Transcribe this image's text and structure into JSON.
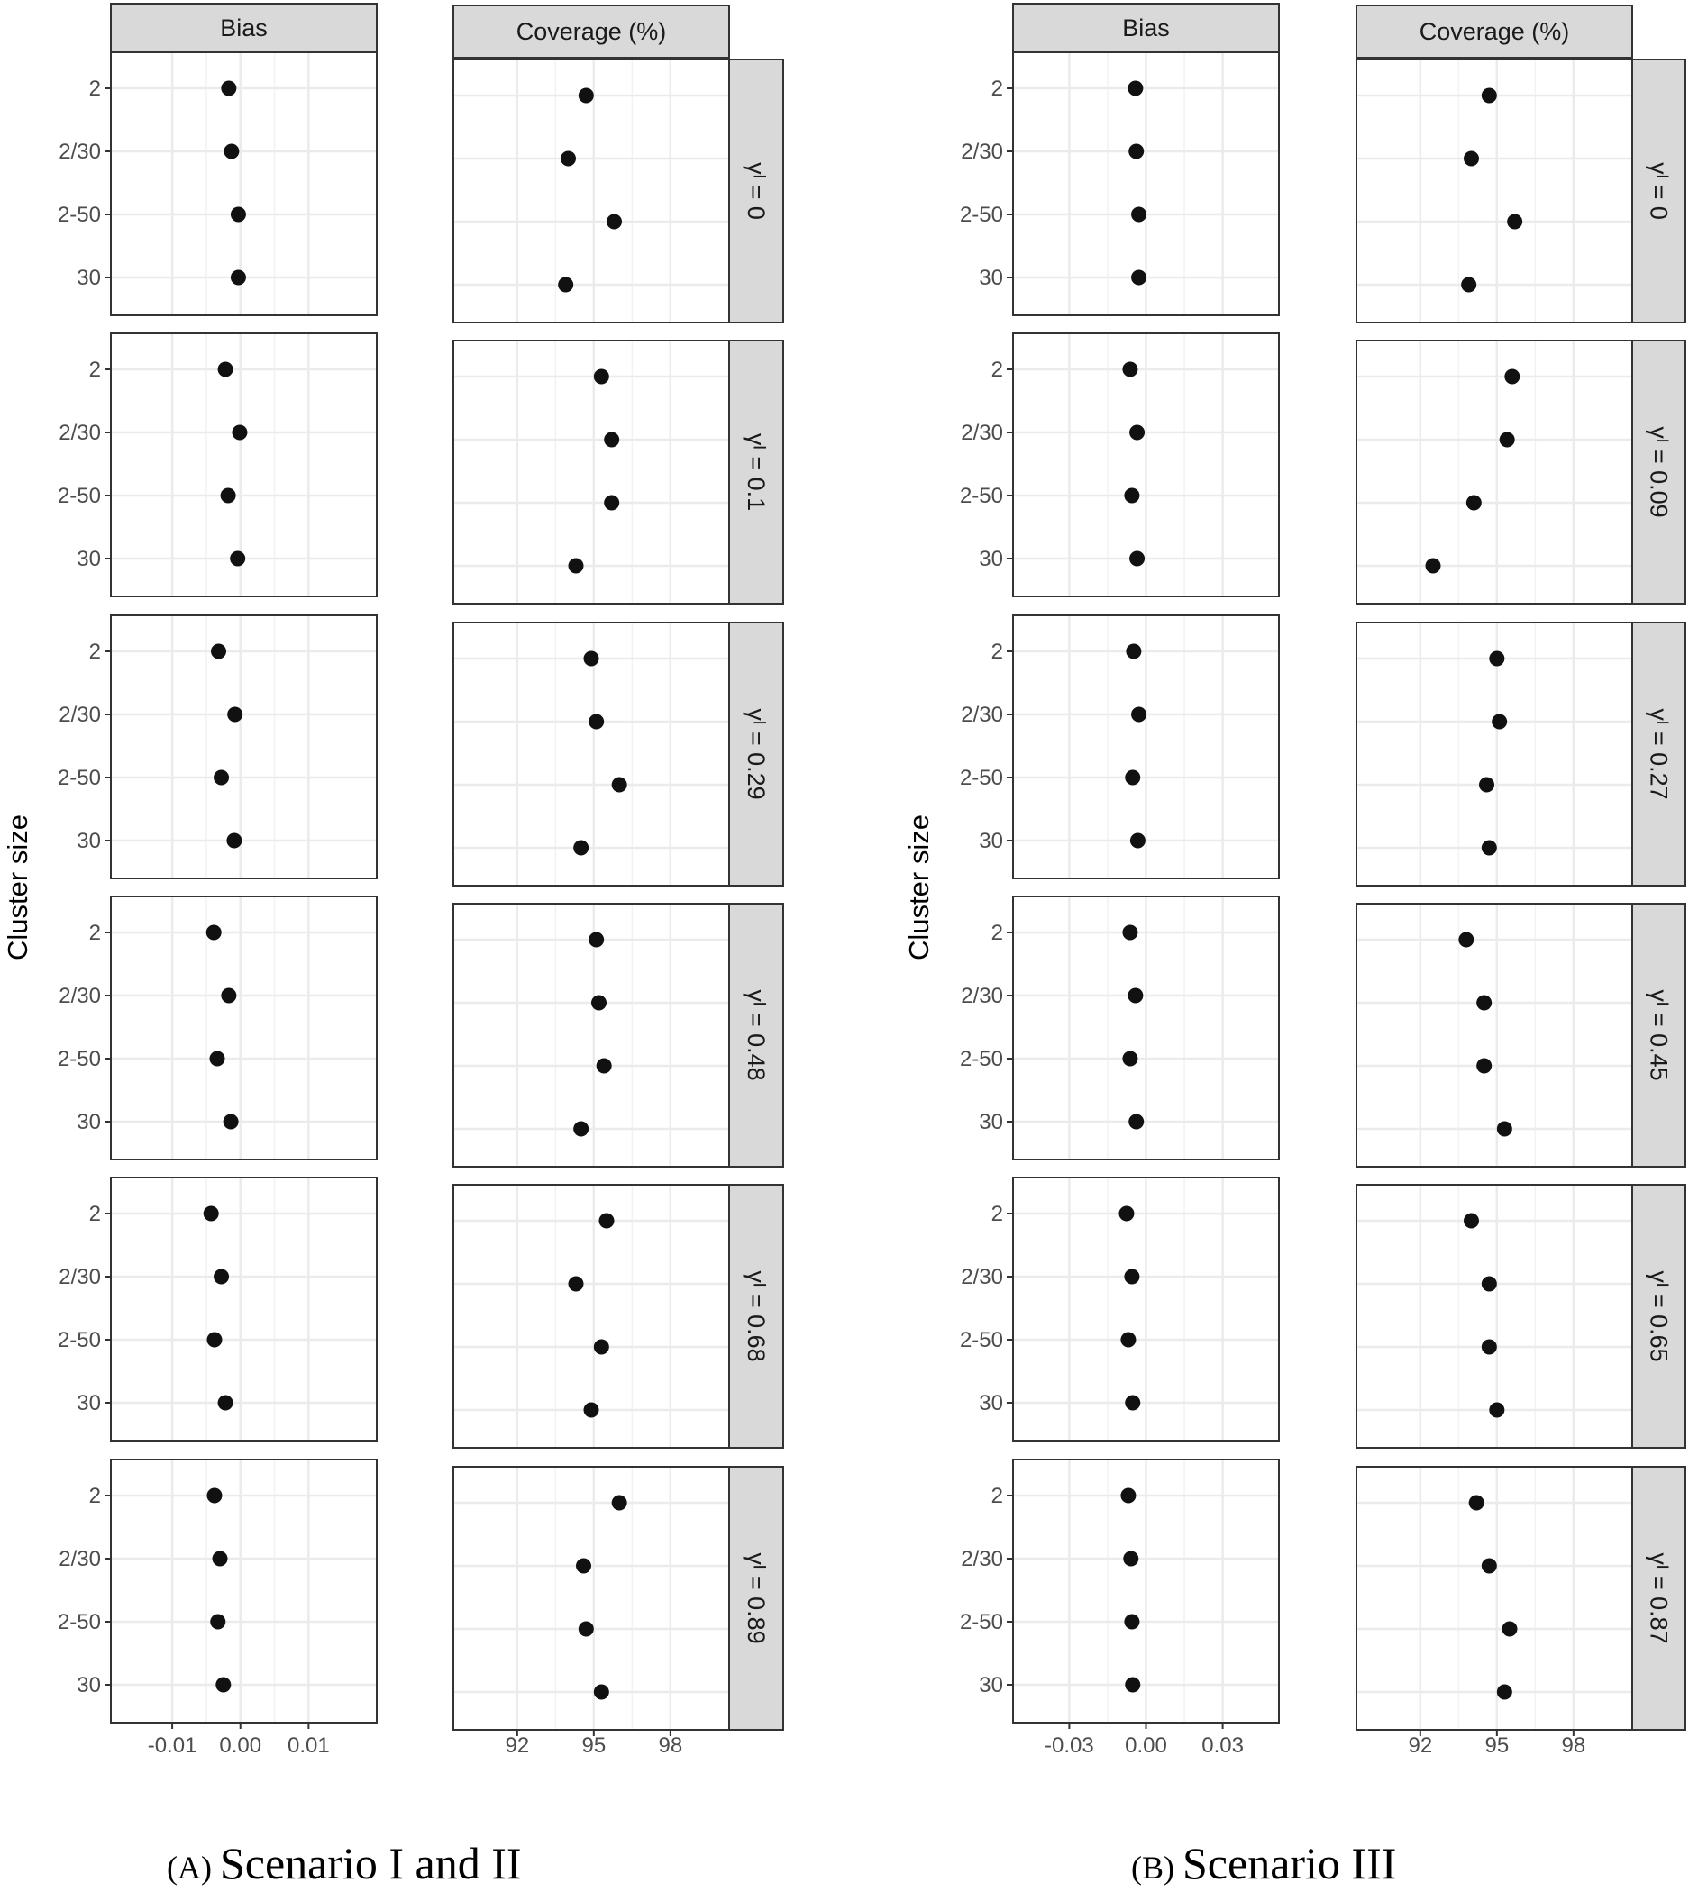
{
  "chart_data": [
    {
      "type": "scatter",
      "caption_label": "(A)",
      "caption_text": "Scenario I and II",
      "ylabel": "Cluster size",
      "categories": [
        "2",
        "2/30",
        "2-50",
        "30"
      ],
      "columns": [
        {
          "title": "Bias",
          "xlim": [
            -0.019,
            0.02
          ],
          "ticks": [
            -0.01,
            0.0,
            0.01
          ],
          "tick_labels": [
            "-0.01",
            "0.00",
            "0.01"
          ]
        },
        {
          "title": "Coverage  (%)",
          "xlim": [
            89.5,
            100.3
          ],
          "ticks": [
            92,
            95,
            98
          ],
          "tick_labels": [
            "92",
            "95",
            "98"
          ]
        }
      ],
      "rows": [
        {
          "label": "γᴵ = 0",
          "bias": [
            -0.0017,
            -0.0013,
            -0.0003,
            -0.0003
          ],
          "coverage": [
            94.7,
            94.0,
            95.8,
            93.9
          ]
        },
        {
          "label": "γᴵ = 0.1",
          "bias": [
            -0.0022,
            -0.0001,
            -0.0018,
            -0.0004
          ],
          "coverage": [
            95.3,
            95.7,
            95.7,
            94.3
          ]
        },
        {
          "label": "γᴵ = 0.29",
          "bias": [
            -0.0032,
            -0.0008,
            -0.0028,
            -0.0009
          ],
          "coverage": [
            94.9,
            95.1,
            96.0,
            94.5
          ]
        },
        {
          "label": "γᴵ = 0.48",
          "bias": [
            -0.0039,
            -0.0017,
            -0.0034,
            -0.0014
          ],
          "coverage": [
            95.1,
            95.2,
            95.4,
            94.5
          ]
        },
        {
          "label": "γᴵ = 0.68",
          "bias": [
            -0.0043,
            -0.0028,
            -0.0038,
            -0.0022
          ],
          "coverage": [
            95.5,
            94.3,
            95.3,
            94.9
          ]
        },
        {
          "label": "γᴵ = 0.89",
          "bias": [
            -0.0038,
            -0.003,
            -0.0033,
            -0.0025
          ],
          "coverage": [
            96.0,
            94.6,
            94.7,
            95.3
          ]
        }
      ]
    },
    {
      "type": "scatter",
      "caption_label": "(B)",
      "caption_text": "Scenario III",
      "ylabel": "Cluster size",
      "categories": [
        "2",
        "2/30",
        "2-50",
        "30"
      ],
      "columns": [
        {
          "title": "Bias",
          "xlim": [
            -0.052,
            0.052
          ],
          "ticks": [
            -0.03,
            0.0,
            0.03
          ],
          "tick_labels": [
            "-0.03",
            "0.00",
            "0.03"
          ]
        },
        {
          "title": "Coverage  (%)",
          "xlim": [
            89.5,
            100.3
          ],
          "ticks": [
            92,
            95,
            98
          ],
          "tick_labels": [
            "92",
            "95",
            "98"
          ]
        }
      ],
      "rows": [
        {
          "label": "γᴵ = 0",
          "bias": [
            -0.0041,
            -0.0038,
            -0.0028,
            -0.0028
          ],
          "coverage": [
            94.7,
            94.0,
            95.7,
            93.9
          ]
        },
        {
          "label": "γᴵ = 0.09",
          "bias": [
            -0.0062,
            -0.0035,
            -0.0055,
            -0.0035
          ],
          "coverage": [
            95.6,
            95.4,
            94.1,
            92.5
          ]
        },
        {
          "label": "γᴵ = 0.27",
          "bias": [
            -0.0048,
            -0.0028,
            -0.0052,
            -0.0032
          ],
          "coverage": [
            95.0,
            95.1,
            94.6,
            94.7
          ]
        },
        {
          "label": "γᴵ = 0.45",
          "bias": [
            -0.0062,
            -0.0041,
            -0.0062,
            -0.0038
          ],
          "coverage": [
            93.8,
            94.5,
            94.5,
            95.3
          ]
        },
        {
          "label": "γᴵ = 0.65",
          "bias": [
            -0.0076,
            -0.0055,
            -0.0069,
            -0.0052
          ],
          "coverage": [
            94.0,
            94.7,
            94.7,
            95.0
          ]
        },
        {
          "label": "γᴵ = 0.87",
          "bias": [
            -0.0069,
            -0.0059,
            -0.0055,
            -0.0052
          ],
          "coverage": [
            94.2,
            94.7,
            95.5,
            95.3
          ]
        }
      ]
    }
  ]
}
